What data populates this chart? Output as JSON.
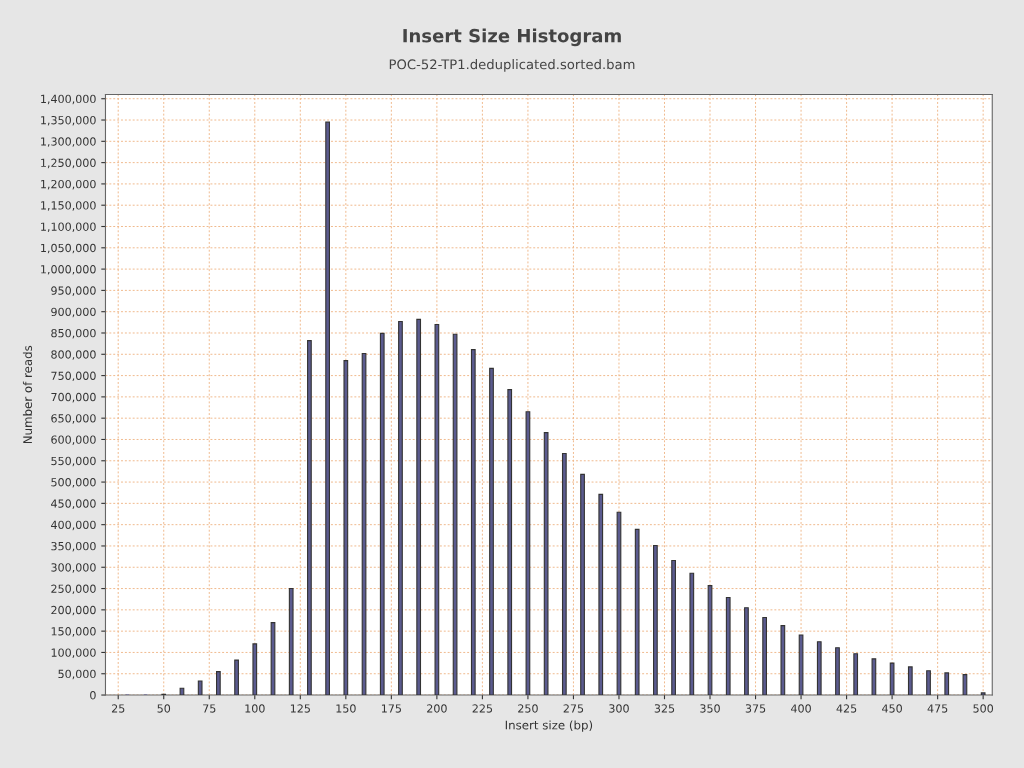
{
  "chart_data": {
    "type": "bar",
    "title": "Insert Size Histogram",
    "subtitle": "POC-52-TP1.deduplicated.sorted.bam",
    "xlabel": "Insert size (bp)",
    "ylabel": "Number of reads",
    "x": [
      30,
      40,
      50,
      60,
      70,
      80,
      90,
      100,
      110,
      120,
      130,
      140,
      150,
      160,
      170,
      180,
      190,
      200,
      210,
      220,
      230,
      240,
      250,
      260,
      270,
      280,
      290,
      300,
      310,
      320,
      330,
      340,
      350,
      360,
      370,
      380,
      390,
      400,
      410,
      420,
      430,
      440,
      450,
      460,
      470,
      480,
      490,
      500
    ],
    "series": [
      {
        "color": "#5b5b8f",
        "values": [
          0,
          0,
          2000,
          16000,
          33000,
          55000,
          82000,
          120000,
          170000,
          250000,
          832000,
          1345000,
          785000,
          802000,
          849000,
          877000,
          882000,
          870000,
          847000,
          811000,
          767000,
          717000,
          665000,
          616000,
          567000,
          518000,
          471000,
          429000,
          389000,
          351000,
          316000,
          286000,
          257000,
          229000,
          205000,
          182000,
          163000,
          141000,
          125000,
          111000,
          97000,
          85000,
          75000,
          66000,
          57000,
          52000,
          48000,
          5000
        ]
      }
    ],
    "xlim": [
      18,
      505
    ],
    "xticks": [
      25,
      50,
      75,
      100,
      125,
      150,
      175,
      200,
      225,
      250,
      275,
      300,
      325,
      350,
      375,
      400,
      425,
      450,
      475,
      500
    ],
    "ylim": [
      0,
      1410000
    ],
    "yticks": [
      {
        "value": 0,
        "label": "0"
      },
      {
        "value": 50000,
        "label": "50,000"
      },
      {
        "value": 100000,
        "label": "100,000"
      },
      {
        "value": 150000,
        "label": "150,000"
      },
      {
        "value": 200000,
        "label": "200,000"
      },
      {
        "value": 250000,
        "label": "250,000"
      },
      {
        "value": 300000,
        "label": "300,000"
      },
      {
        "value": 350000,
        "label": "350,000"
      },
      {
        "value": 400000,
        "label": "400,000"
      },
      {
        "value": 450000,
        "label": "450,000"
      },
      {
        "value": 500000,
        "label": "500,000"
      },
      {
        "value": 550000,
        "label": "550,000"
      },
      {
        "value": 600000,
        "label": "600,000"
      },
      {
        "value": 650000,
        "label": "650,000"
      },
      {
        "value": 700000,
        "label": "700,000"
      },
      {
        "value": 750000,
        "label": "750,000"
      },
      {
        "value": 800000,
        "label": "800,000"
      },
      {
        "value": 850000,
        "label": "850,000"
      },
      {
        "value": 900000,
        "label": "900,000"
      },
      {
        "value": 950000,
        "label": "950,000"
      },
      {
        "value": 1000000,
        "label": "1,000,000"
      },
      {
        "value": 1050000,
        "label": "1,050,000"
      },
      {
        "value": 1100000,
        "label": "1,100,000"
      },
      {
        "value": 1150000,
        "label": "1,150,000"
      },
      {
        "value": 1200000,
        "label": "1,200,000"
      },
      {
        "value": 1250000,
        "label": "1,250,000"
      },
      {
        "value": 1300000,
        "label": "1,300,000"
      },
      {
        "value": 1350000,
        "label": "1,350,000"
      },
      {
        "value": 1400000,
        "label": "1,400,000"
      }
    ],
    "grid": true
  }
}
